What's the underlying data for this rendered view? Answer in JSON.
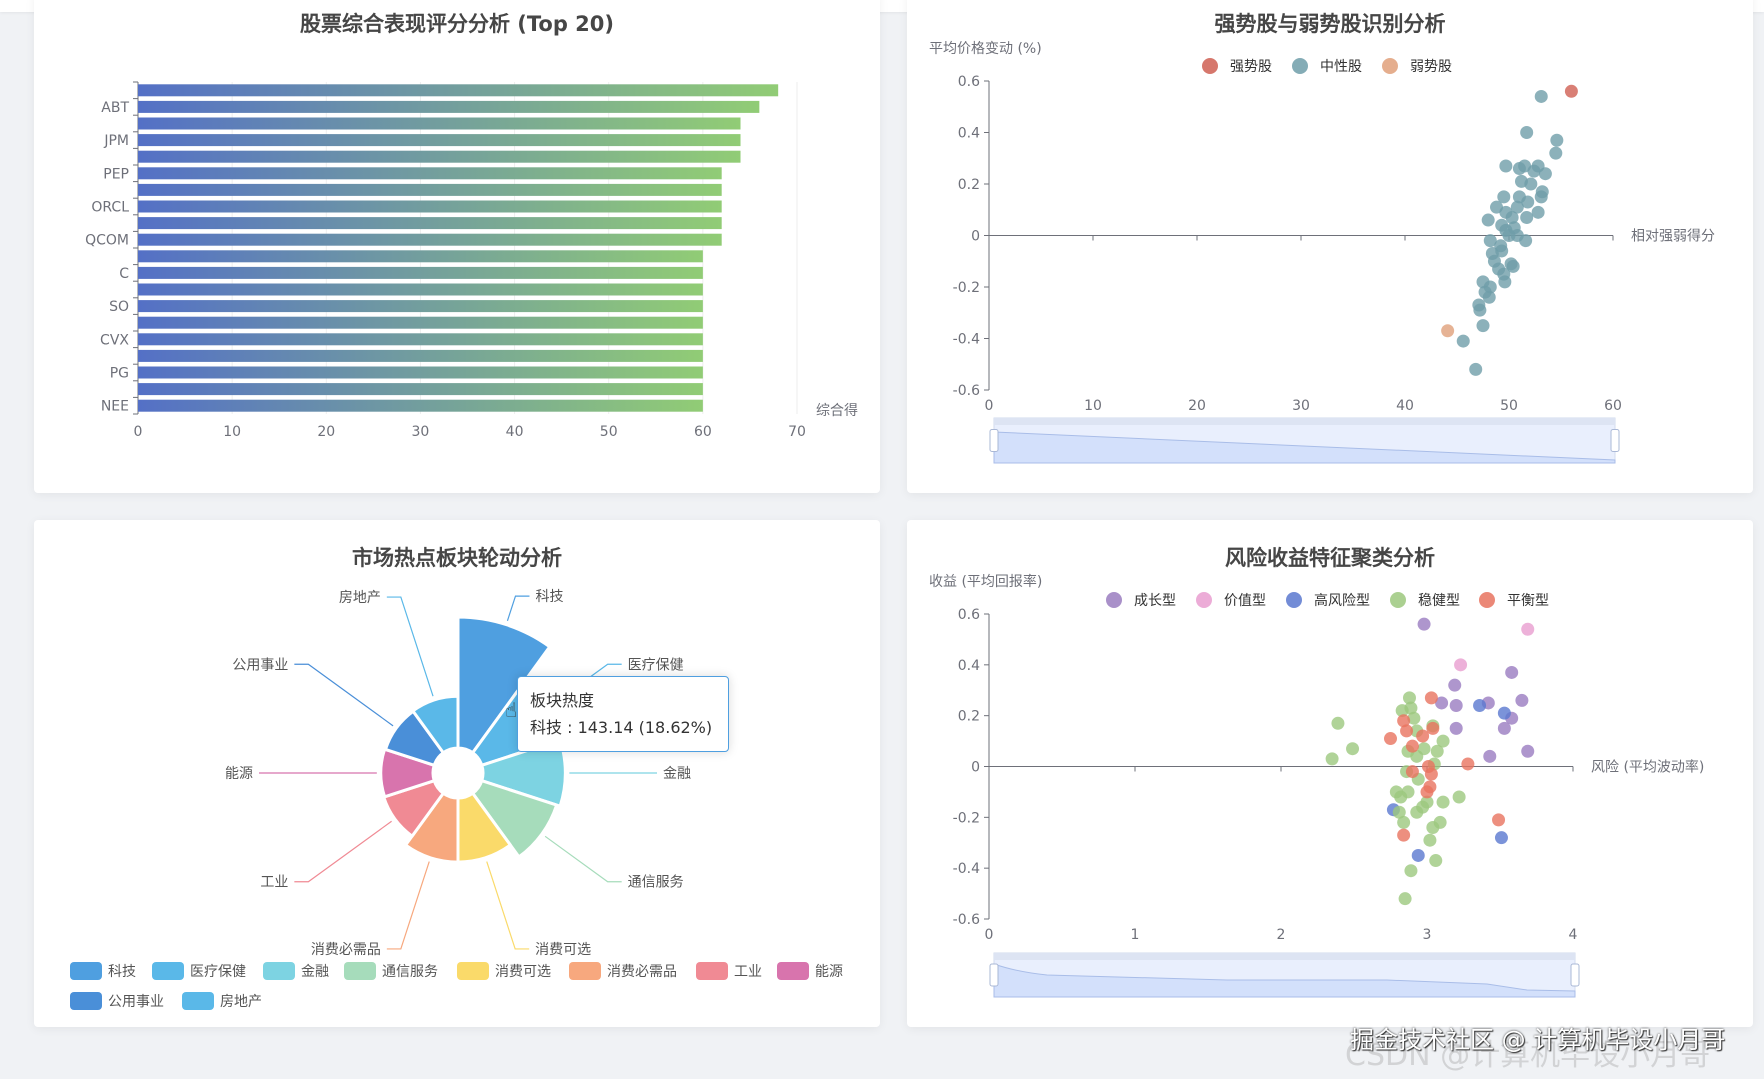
{
  "chart_data": [
    {
      "type": "bar",
      "orientation": "horizontal",
      "title": "股票综合表现评分分析 (Top 20)",
      "xlabel": "综合得",
      "xlim": [
        0,
        70
      ],
      "xticks": [
        "0",
        "10",
        "20",
        "30",
        "40",
        "50",
        "60",
        "70"
      ],
      "categories": [
        "NEE",
        "",
        "PG",
        "",
        "CVX",
        "",
        "SO",
        "",
        "C",
        "",
        "QCOM",
        "",
        "ORCL",
        "",
        "PEP",
        "",
        "JPM",
        "",
        "ABT",
        ""
      ],
      "values": [
        60,
        60,
        60,
        60,
        60,
        60,
        60,
        60,
        60,
        60,
        62,
        62,
        62,
        62,
        62,
        64,
        64,
        64,
        66,
        68
      ],
      "gradient": [
        "#5470c6",
        "#91cc75"
      ],
      "grid": true
    },
    {
      "type": "scatter",
      "title": "强势股与弱势股识别分析",
      "xlabel": "相对强弱得分",
      "ylabel": "平均价格变动 (%)",
      "xlim": [
        0,
        60
      ],
      "ylim": [
        -0.6,
        0.6
      ],
      "xticks": [
        "0",
        "10",
        "20",
        "30",
        "40",
        "50",
        "60"
      ],
      "yticks": [
        "0.6",
        "0.4",
        "0.2",
        "0",
        "-0.2",
        "-0.4",
        "-0.6"
      ],
      "legend_position": "top",
      "series": [
        {
          "name": "强势股",
          "color": "#cf5f52",
          "points": [
            [
              56.0,
              0.56
            ]
          ]
        },
        {
          "name": "中性股",
          "color": "#6f9ea9",
          "points": [
            [
              53.1,
              0.54
            ],
            [
              51.7,
              0.4
            ],
            [
              54.6,
              0.37
            ],
            [
              54.5,
              0.32
            ],
            [
              49.7,
              0.27
            ],
            [
              51.5,
              0.27
            ],
            [
              52.8,
              0.27
            ],
            [
              51.0,
              0.26
            ],
            [
              52.4,
              0.25
            ],
            [
              53.5,
              0.24
            ],
            [
              51.2,
              0.21
            ],
            [
              52.1,
              0.2
            ],
            [
              53.2,
              0.17
            ],
            [
              53.1,
              0.15
            ],
            [
              49.5,
              0.15
            ],
            [
              51.0,
              0.15
            ],
            [
              51.8,
              0.13
            ],
            [
              48.8,
              0.11
            ],
            [
              50.8,
              0.11
            ],
            [
              52.8,
              0.09
            ],
            [
              49.7,
              0.09
            ],
            [
              51.7,
              0.07
            ],
            [
              48.0,
              0.06
            ],
            [
              50.3,
              0.07
            ],
            [
              49.3,
              0.04
            ],
            [
              50.5,
              0.03
            ],
            [
              49.7,
              0.02
            ],
            [
              50.8,
              0.0
            ],
            [
              50.0,
              0.0
            ],
            [
              51.6,
              -0.02
            ],
            [
              48.2,
              -0.02
            ],
            [
              49.2,
              -0.04
            ],
            [
              48.4,
              -0.07
            ],
            [
              49.3,
              -0.06
            ],
            [
              50.2,
              -0.11
            ],
            [
              48.6,
              -0.1
            ],
            [
              50.4,
              -0.12
            ],
            [
              49.0,
              -0.13
            ],
            [
              49.5,
              -0.15
            ],
            [
              49.6,
              -0.18
            ],
            [
              47.5,
              -0.18
            ],
            [
              48.2,
              -0.2
            ],
            [
              47.7,
              -0.22
            ],
            [
              48.1,
              -0.24
            ],
            [
              47.1,
              -0.27
            ],
            [
              47.2,
              -0.29
            ],
            [
              47.5,
              -0.35
            ],
            [
              45.6,
              -0.41
            ],
            [
              46.8,
              -0.52
            ]
          ]
        },
        {
          "name": "弱势股",
          "color": "#e0a07a",
          "points": [
            [
              44.1,
              -0.37
            ]
          ]
        }
      ],
      "datazoom": true
    },
    {
      "type": "pie",
      "rose": true,
      "title": "市场热点板块轮动分析",
      "categories": [
        "科技",
        "医疗保健",
        "金融",
        "通信服务",
        "消费可选",
        "消费必需品",
        "工业",
        "能源",
        "公用事业",
        "房地产"
      ],
      "values": [
        143.14,
        82,
        90,
        86,
        70,
        70,
        58,
        57,
        56,
        56.6
      ],
      "colors": [
        "#4f9fe0",
        "#5ab8e8",
        "#7dd3e2",
        "#a6dcbb",
        "#fada6a",
        "#f7a87e",
        "#f08a94",
        "#d874ad",
        "#4a8fd8",
        "#5ab8e8"
      ],
      "legend_position": "bottom",
      "tooltip": {
        "title": "板块热度",
        "line": "科技 : 143.14 (18.62%)"
      }
    },
    {
      "type": "scatter",
      "title": "风险收益特征聚类分析",
      "xlabel": "风险 (平均波动率)",
      "ylabel": "收益 (平均回报率)",
      "xlim": [
        0,
        4
      ],
      "ylim": [
        -0.6,
        0.6
      ],
      "xticks": [
        "0",
        "1",
        "2",
        "3",
        "4"
      ],
      "yticks": [
        "0.6",
        "0.4",
        "0.2",
        "0",
        "-0.2",
        "-0.4",
        "-0.6"
      ],
      "legend_position": "top",
      "series": [
        {
          "name": "成长型",
          "color": "#9a7cc0",
          "points": [
            [
              2.98,
              0.56
            ],
            [
              3.19,
              0.32
            ],
            [
              3.58,
              0.37
            ],
            [
              3.65,
              0.26
            ],
            [
              3.1,
              0.25
            ],
            [
              3.2,
              0.24
            ],
            [
              3.42,
              0.25
            ],
            [
              3.58,
              0.19
            ],
            [
              3.2,
              0.15
            ],
            [
              3.53,
              0.15
            ],
            [
              3.43,
              0.04
            ],
            [
              3.69,
              0.06
            ]
          ]
        },
        {
          "name": "价值型",
          "color": "#e99dd0",
          "points": [
            [
              3.69,
              0.54
            ],
            [
              3.23,
              0.4
            ]
          ]
        },
        {
          "name": "高风险型",
          "color": "#5a78cf",
          "points": [
            [
              3.36,
              0.24
            ],
            [
              3.53,
              0.21
            ],
            [
              2.77,
              -0.17
            ],
            [
              2.94,
              -0.35
            ],
            [
              3.51,
              -0.28
            ]
          ]
        },
        {
          "name": "稳健型",
          "color": "#9cc87e",
          "points": [
            [
              2.39,
              0.17
            ],
            [
              2.49,
              0.07
            ],
            [
              2.35,
              0.03
            ],
            [
              2.88,
              0.27
            ],
            [
              2.83,
              0.22
            ],
            [
              2.89,
              0.23
            ],
            [
              2.91,
              0.19
            ],
            [
              2.93,
              0.14
            ],
            [
              3.04,
              0.16
            ],
            [
              3.11,
              0.1
            ],
            [
              2.87,
              0.06
            ],
            [
              2.93,
              0.04
            ],
            [
              2.98,
              0.07
            ],
            [
              3.07,
              0.06
            ],
            [
              3.05,
              0.01
            ],
            [
              2.86,
              -0.02
            ],
            [
              2.94,
              -0.05
            ],
            [
              2.79,
              -0.1
            ],
            [
              2.87,
              -0.1
            ],
            [
              2.82,
              -0.12
            ],
            [
              3.0,
              -0.14
            ],
            [
              3.11,
              -0.14
            ],
            [
              3.22,
              -0.12
            ],
            [
              2.93,
              -0.18
            ],
            [
              2.81,
              -0.18
            ],
            [
              2.84,
              -0.22
            ],
            [
              3.04,
              -0.24
            ],
            [
              3.09,
              -0.22
            ],
            [
              3.02,
              -0.29
            ],
            [
              3.06,
              -0.37
            ],
            [
              2.89,
              -0.41
            ],
            [
              2.85,
              -0.52
            ],
            [
              2.97,
              -0.16
            ]
          ]
        },
        {
          "name": "平衡型",
          "color": "#e8735f",
          "points": [
            [
              3.03,
              0.27
            ],
            [
              2.75,
              0.11
            ],
            [
              2.84,
              0.18
            ],
            [
              2.86,
              0.14
            ],
            [
              2.9,
              0.08
            ],
            [
              2.97,
              0.12
            ],
            [
              3.04,
              0.15
            ],
            [
              3.28,
              0.01
            ],
            [
              3.01,
              0.0
            ],
            [
              2.9,
              -0.02
            ],
            [
              3.03,
              -0.03
            ],
            [
              3.02,
              -0.08
            ],
            [
              3.0,
              -0.1
            ],
            [
              3.49,
              -0.21
            ],
            [
              2.84,
              -0.27
            ]
          ]
        }
      ],
      "datazoom": true
    }
  ],
  "watermark": {
    "primary": "掘金技术社区 @ 计算机毕设小月哥",
    "secondary": "CSDN @计算机毕设小月哥"
  }
}
